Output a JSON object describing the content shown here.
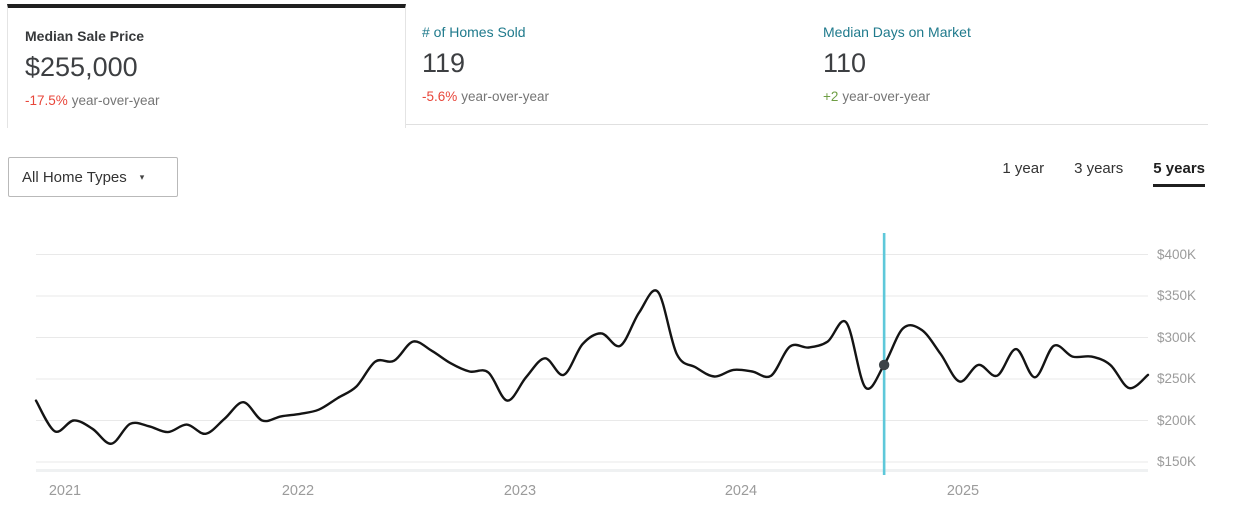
{
  "metrics": [
    {
      "label": "Median Sale Price",
      "value": "$255,000",
      "change": "-17.5%",
      "change_suffix": "year-over-year",
      "change_direction": "down"
    },
    {
      "label": "# of Homes Sold",
      "value": "119",
      "change": "-5.6%",
      "change_suffix": "year-over-year",
      "change_direction": "down"
    },
    {
      "label": "Median Days on Market",
      "value": "110",
      "change": "+2",
      "change_suffix": "year-over-year",
      "change_direction": "up"
    }
  ],
  "filters": {
    "home_type_label": "All Home Types",
    "caret_icon": "▾"
  },
  "range_selector": {
    "options": [
      "1 year",
      "3 years",
      "5 years"
    ],
    "selected": "5 years"
  },
  "colors": {
    "accent_teal": "#1f7a8c",
    "negative": "#e8463a",
    "positive": "#6f9e45",
    "line": "#141414",
    "grid": "#e9e9e9",
    "baseline": "#eff1f2",
    "hover_line": "#5ec8da",
    "dot": "#3d4347",
    "axis_text": "#9b9b9b",
    "muted_text": "#757575"
  },
  "chart_data": {
    "type": "line",
    "title": "Median Sale Price over 5 years",
    "grid": "horizontal",
    "legend": "none",
    "ylim_k": [
      150,
      400
    ],
    "yticks_k": [
      400,
      350,
      300,
      250,
      200,
      150
    ],
    "y_tick_labels": [
      "$400K",
      "$350K",
      "$300K",
      "$250K",
      "$200K",
      "$150K"
    ],
    "x_tick_labels": [
      "2021",
      "2022",
      "2023",
      "2024",
      "2025"
    ],
    "x_tick_month_index": [
      2,
      14,
      26,
      38,
      50
    ],
    "months": [
      "2020-11",
      "2020-12",
      "2021-01",
      "2021-02",
      "2021-03",
      "2021-04",
      "2021-05",
      "2021-06",
      "2021-07",
      "2021-08",
      "2021-09",
      "2021-10",
      "2021-11",
      "2021-12",
      "2022-01",
      "2022-02",
      "2022-03",
      "2022-04",
      "2022-05",
      "2022-06",
      "2022-07",
      "2022-08",
      "2022-09",
      "2022-10",
      "2022-11",
      "2022-12",
      "2023-01",
      "2023-02",
      "2023-03",
      "2023-04",
      "2023-05",
      "2023-06",
      "2023-07",
      "2023-08",
      "2023-09",
      "2023-10",
      "2023-11",
      "2023-12",
      "2024-01",
      "2024-02",
      "2024-03",
      "2024-04",
      "2024-05",
      "2024-06",
      "2024-07",
      "2024-08",
      "2024-09",
      "2024-10",
      "2024-11",
      "2024-12",
      "2025-01",
      "2025-02",
      "2025-03",
      "2025-04",
      "2025-05",
      "2025-06",
      "2025-07",
      "2025-08",
      "2025-09",
      "2025-10"
    ],
    "series": [
      {
        "name": "Median Sale Price ($K)",
        "values_k_usd": [
          224,
          187,
          200,
          190,
          172,
          196,
          193,
          186,
          195,
          184,
          202,
          222,
          200,
          205,
          208,
          213,
          227,
          241,
          271,
          272,
          295,
          284,
          269,
          259,
          258,
          224,
          252,
          275,
          255,
          292,
          305,
          290,
          330,
          355,
          280,
          264,
          253,
          261,
          259,
          254,
          289,
          288,
          295,
          318,
          240,
          267,
          311,
          309,
          280,
          247,
          267,
          254,
          286,
          252,
          290,
          277,
          277,
          267,
          239,
          255
        ]
      }
    ],
    "marker": {
      "month": "2024-08",
      "month_index": 45,
      "value_k": 267
    }
  }
}
